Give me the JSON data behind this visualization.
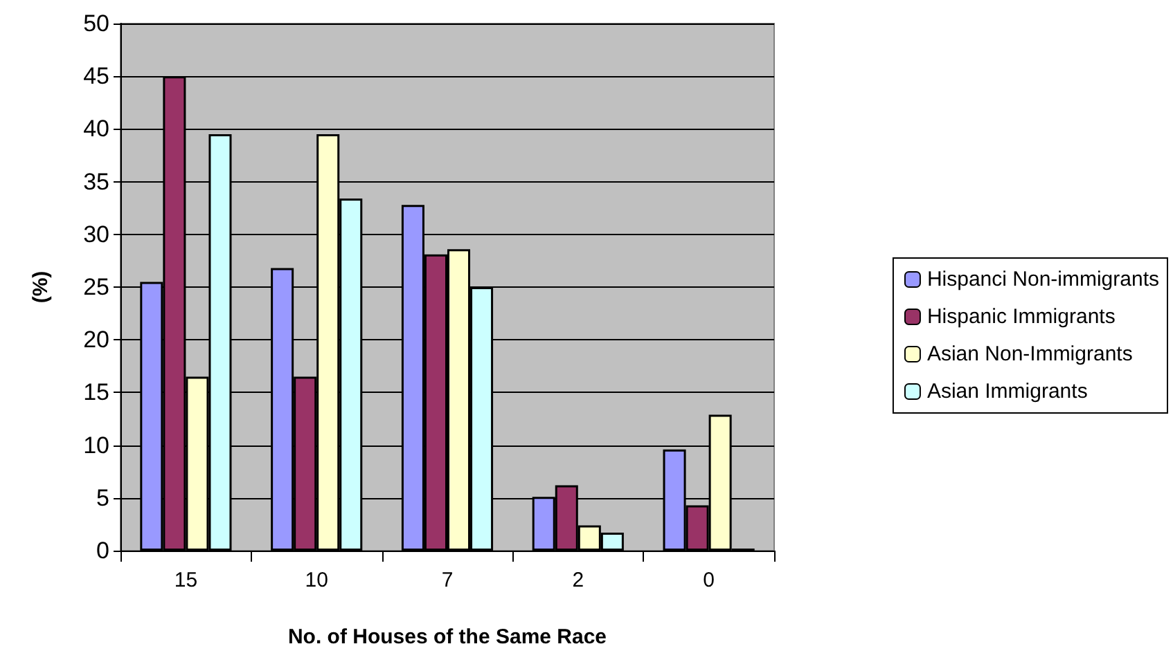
{
  "chart_data": {
    "type": "bar",
    "xlabel": "No. of Houses of the Same Race",
    "ylabel": "(%)",
    "categories": [
      "15",
      "10",
      "7",
      "2",
      "0"
    ],
    "series": [
      {
        "name": "Hispanci Non-immigrants",
        "color": "#9999ff",
        "values": [
          25.5,
          26.8,
          32.8,
          5.1,
          9.6
        ]
      },
      {
        "name": "Hispanic Immigrants",
        "color": "#993366",
        "values": [
          45,
          16.5,
          28.1,
          6.2,
          4.3
        ]
      },
      {
        "name": "Asian Non-Immigrants",
        "color": "#ffffcc",
        "values": [
          16.5,
          39.5,
          28.6,
          2.4,
          12.9
        ]
      },
      {
        "name": "Asian Immigrants",
        "color": "#ccffff",
        "values": [
          39.5,
          33.4,
          25,
          1.7,
          0.2
        ]
      }
    ],
    "ylim": [
      0,
      50
    ],
    "yticks": [
      0,
      5,
      10,
      15,
      20,
      25,
      30,
      35,
      40,
      45,
      50
    ],
    "grid": "y",
    "legend": "right"
  }
}
